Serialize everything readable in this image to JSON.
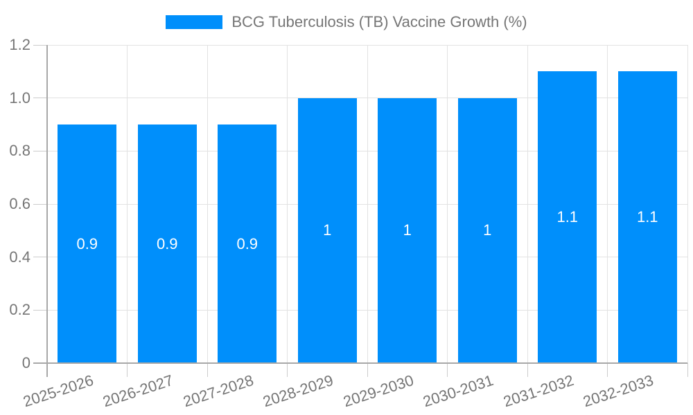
{
  "chart_data": {
    "type": "bar",
    "title": "BCG Tuberculosis (TB) Vaccine Growth (%)",
    "legend_position": "top",
    "categories": [
      "2025-2026",
      "2026-2027",
      "2027-2028",
      "2028-2029",
      "2029-2030",
      "2030-2031",
      "2031-2032",
      "2032-2033"
    ],
    "values": [
      0.9,
      0.9,
      0.9,
      1,
      1,
      1,
      1.1,
      1.1
    ],
    "bar_labels": [
      "0.9",
      "0.9",
      "0.9",
      "1",
      "1",
      "1",
      "1.1",
      "1.1"
    ],
    "xlabel": "",
    "ylabel": "",
    "ylim": [
      0,
      1.2
    ],
    "y_ticks": [
      "0",
      "0.2",
      "0.4",
      "0.6",
      "0.8",
      "1.0",
      "1.2"
    ],
    "grid": true,
    "colors": {
      "bar": "#008FFB",
      "bar_label": "#FFFFFF",
      "axis_text": "#757575",
      "axis_line": "#A8A8A8",
      "gridline": "#E2E2E2",
      "tick": "#CCCCCC",
      "background": "#FFFFFF"
    }
  }
}
